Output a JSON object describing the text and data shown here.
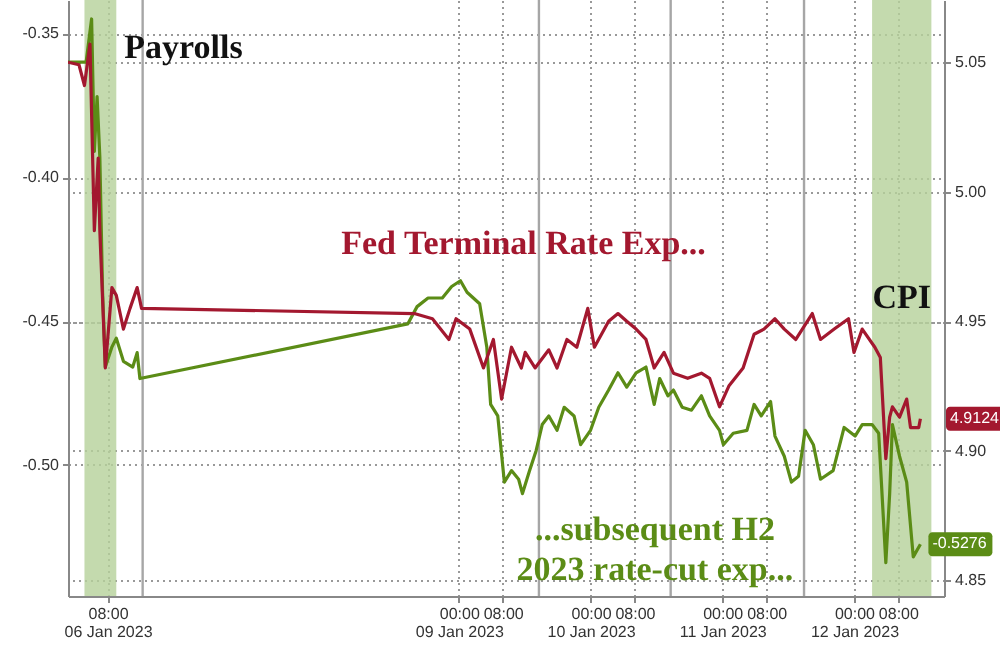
{
  "chart_data": {
    "type": "line",
    "xlim": [
      "2023-01-06T00:48",
      "2023-01-12T16:24"
    ],
    "xticks": [
      {
        "value": "2023-01-06T08:00",
        "label": "08:00\n06 Jan 2023"
      },
      {
        "value": "2023-01-09T00:00",
        "label": "00:00\n09 Jan 2023"
      },
      {
        "value": "2023-01-09T08:00",
        "label": "08:00"
      },
      {
        "value": "2023-01-10T00:00",
        "label": "00:00\n10 Jan 2023"
      },
      {
        "value": "2023-01-10T08:00",
        "label": "08:00"
      },
      {
        "value": "2023-01-11T00:00",
        "label": "00:00\n11 Jan 2023"
      },
      {
        "value": "2023-01-11T08:00",
        "label": "08:00"
      },
      {
        "value": "2023-01-12T00:00",
        "label": "00:00\n12 Jan 2023"
      },
      {
        "value": "2023-01-12T08:00",
        "label": "08:00"
      }
    ],
    "ylim": [
      -0.5456,
      -0.3384
    ],
    "yticks": [
      {
        "value": -0.35,
        "label": "-0.35"
      },
      {
        "value": -0.4,
        "label": "-0.40"
      },
      {
        "value": -0.45,
        "label": "-0.45"
      },
      {
        "value": -0.5,
        "label": "-0.50"
      }
    ],
    "y2lim": [
      4.844,
      5.074
    ],
    "y2ticks": [
      {
        "value": 4.85,
        "label": "4.85"
      },
      {
        "value": 4.9,
        "label": "4.90"
      },
      {
        "value": 4.95,
        "label": "4.95"
      },
      {
        "value": 5.0,
        "label": "5.00"
      },
      {
        "value": 5.05,
        "label": "5.05"
      }
    ],
    "grid": true,
    "line_style": "solid",
    "series": [
      {
        "color": "#a3182f",
        "axis": "y2",
        "x": [
          "2023-01-06T00:48",
          "2023-01-06T02:48",
          "2023-01-06T03:48",
          "2023-01-06T04:48",
          "2023-01-06T05:36",
          "2023-01-06T06:18",
          "2023-01-06T06:36",
          "2023-01-06T07:36",
          "2023-01-06T08:48",
          "2023-01-06T09:36",
          "2023-01-06T10:54",
          "2023-01-06T12:06",
          "2023-01-06T13:24",
          "2023-01-06T14:12",
          "2023-01-08T15:54",
          "2023-01-08T19:12",
          "2023-01-08T22:12",
          "2023-01-08T23:30",
          "2023-01-09T02:00",
          "2023-01-09T04:30",
          "2023-01-09T06:18",
          "2023-01-09T07:48",
          "2023-01-09T09:36",
          "2023-01-09T11:24",
          "2023-01-09T12:06",
          "2023-01-09T13:54",
          "2023-01-09T16:24",
          "2023-01-09T17:54",
          "2023-01-09T19:42",
          "2023-01-09T21:30",
          "2023-01-09T23:30",
          "2023-01-10T00:42",
          "2023-01-10T03:18",
          "2023-01-10T05:00",
          "2023-01-10T06:36",
          "2023-01-10T08:18",
          "2023-01-10T10:06",
          "2023-01-10T11:36",
          "2023-01-10T13:24",
          "2023-01-10T15:06",
          "2023-01-10T17:42",
          "2023-01-10T20:12",
          "2023-01-10T21:42",
          "2023-01-10T23:30",
          "2023-01-11T01:12",
          "2023-01-11T03:48",
          "2023-01-11T05:48",
          "2023-01-11T07:36",
          "2023-01-11T09:36",
          "2023-01-11T11:18",
          "2023-01-11T13:24",
          "2023-01-11T16:24",
          "2023-01-11T17:54",
          "2023-01-11T20:24",
          "2023-01-11T23:00",
          "2023-01-12T00:00",
          "2023-01-12T01:30",
          "2023-01-12T03:48",
          "2023-01-12T04:48",
          "2023-01-12T05:48",
          "2023-01-12T06:30",
          "2023-01-12T07:00",
          "2023-01-12T08:18",
          "2023-01-12T09:36",
          "2023-01-12T10:18",
          "2023-01-12T11:48",
          "2023-01-12T12:06"
        ],
        "values": [
          5.05,
          5.049,
          5.041,
          5.057,
          4.985,
          5.013,
          4.985,
          4.932,
          4.963,
          4.96,
          4.947,
          4.955,
          4.963,
          4.955,
          4.953,
          4.951,
          4.943,
          4.951,
          4.947,
          4.932,
          4.943,
          4.92,
          4.94,
          4.932,
          4.938,
          4.932,
          4.939,
          4.932,
          4.943,
          4.94,
          4.955,
          4.94,
          4.95,
          4.953,
          4.95,
          4.947,
          4.943,
          4.932,
          4.938,
          4.93,
          4.928,
          4.93,
          4.928,
          4.917,
          4.925,
          4.932,
          4.945,
          4.947,
          4.951,
          4.947,
          4.943,
          4.953,
          4.943,
          4.947,
          4.951,
          4.938,
          4.947,
          4.94,
          4.936,
          4.897,
          4.913,
          4.917,
          4.913,
          4.92,
          4.909,
          4.909,
          4.9124
        ],
        "value_labels": [
          null,
          null,
          null,
          null,
          null,
          null,
          null,
          null,
          null,
          null,
          null,
          null,
          null,
          null,
          null,
          null,
          null,
          null,
          null,
          null,
          null,
          null,
          null,
          null,
          null,
          null,
          null,
          null,
          null,
          null,
          null,
          null,
          null,
          null,
          null,
          null,
          null,
          null,
          null,
          null,
          null,
          null,
          null,
          null,
          null,
          null,
          null,
          null,
          null,
          null,
          null,
          null,
          null,
          null,
          null,
          null,
          null,
          null,
          null,
          null,
          null,
          null,
          null,
          null,
          null,
          null,
          "4.9124"
        ]
      },
      {
        "color": "#5b8c16",
        "x": [
          "2023-01-06T00:48",
          "2023-01-06T04:06",
          "2023-01-06T05:06",
          "2023-01-06T05:36",
          "2023-01-06T06:06",
          "2023-01-06T06:36",
          "2023-01-06T07:06",
          "2023-01-06T07:36",
          "2023-01-06T08:48",
          "2023-01-06T09:36",
          "2023-01-06T10:54",
          "2023-01-06T12:36",
          "2023-01-06T13:24",
          "2023-01-06T13:54",
          "2023-01-08T14:42",
          "2023-01-08T16:24",
          "2023-01-08T18:24",
          "2023-01-08T21:00",
          "2023-01-08T22:42",
          "2023-01-09T00:18",
          "2023-01-09T01:30",
          "2023-01-09T03:48",
          "2023-01-09T05:06",
          "2023-01-09T05:48",
          "2023-01-09T07:06",
          "2023-01-09T08:18",
          "2023-01-09T09:36",
          "2023-01-09T10:54",
          "2023-01-09T11:36",
          "2023-01-09T12:54",
          "2023-01-09T14:06",
          "2023-01-09T15:12",
          "2023-01-09T16:24",
          "2023-01-09T17:54",
          "2023-01-09T19:12",
          "2023-01-09T21:00",
          "2023-01-09T22:12",
          "2023-01-10T00:00",
          "2023-01-10T01:30",
          "2023-01-10T03:18",
          "2023-01-10T05:00",
          "2023-01-10T06:36",
          "2023-01-10T08:18",
          "2023-01-10T10:06",
          "2023-01-10T11:36",
          "2023-01-10T12:36",
          "2023-01-10T14:06",
          "2023-01-10T15:06",
          "2023-01-10T16:42",
          "2023-01-10T18:24",
          "2023-01-10T20:12",
          "2023-01-10T21:42",
          "2023-01-10T23:30",
          "2023-01-11T00:12",
          "2023-01-11T02:00",
          "2023-01-11T04:30",
          "2023-01-11T05:48",
          "2023-01-11T07:06",
          "2023-01-11T08:48",
          "2023-01-11T09:36",
          "2023-01-11T11:18",
          "2023-01-11T12:36",
          "2023-01-11T13:54",
          "2023-01-11T15:06",
          "2023-01-11T16:36",
          "2023-01-11T17:54",
          "2023-01-11T20:12",
          "2023-01-11T22:12",
          "2023-01-12T00:12",
          "2023-01-12T01:30",
          "2023-01-12T03:18",
          "2023-01-12T04:30",
          "2023-01-12T05:48",
          "2023-01-12T06:30",
          "2023-01-12T07:00",
          "2023-01-12T08:18",
          "2023-01-12T09:36",
          "2023-01-12T10:48",
          "2023-01-12T12:06"
        ],
        "values": [
          -0.36,
          -0.36,
          -0.345,
          -0.391,
          -0.372,
          -0.393,
          -0.44,
          -0.466,
          -0.459,
          -0.456,
          -0.464,
          -0.466,
          -0.461,
          -0.47,
          -0.451,
          -0.445,
          -0.442,
          -0.442,
          -0.438,
          -0.436,
          -0.44,
          -0.444,
          -0.459,
          -0.479,
          -0.483,
          -0.506,
          -0.502,
          -0.505,
          -0.51,
          -0.502,
          -0.495,
          -0.486,
          -0.483,
          -0.488,
          -0.48,
          -0.483,
          -0.493,
          -0.488,
          -0.48,
          -0.474,
          -0.468,
          -0.473,
          -0.468,
          -0.466,
          -0.479,
          -0.47,
          -0.476,
          -0.474,
          -0.48,
          -0.481,
          -0.476,
          -0.483,
          -0.488,
          -0.493,
          -0.489,
          -0.488,
          -0.479,
          -0.483,
          -0.478,
          -0.49,
          -0.497,
          -0.506,
          -0.504,
          -0.488,
          -0.493,
          -0.505,
          -0.502,
          -0.487,
          -0.49,
          -0.486,
          -0.486,
          -0.489,
          -0.534,
          -0.51,
          -0.486,
          -0.497,
          -0.506,
          -0.532,
          -0.5276
        ],
        "value_labels": [
          null,
          null,
          null,
          null,
          null,
          null,
          null,
          null,
          null,
          null,
          null,
          null,
          null,
          null,
          null,
          null,
          null,
          null,
          null,
          null,
          null,
          null,
          null,
          null,
          null,
          null,
          null,
          null,
          null,
          null,
          null,
          null,
          null,
          null,
          null,
          null,
          null,
          null,
          null,
          null,
          null,
          null,
          null,
          null,
          null,
          null,
          null,
          null,
          null,
          null,
          null,
          null,
          null,
          null,
          null,
          null,
          null,
          null,
          null,
          null,
          null,
          null,
          null,
          null,
          null,
          null,
          null,
          null,
          null,
          null,
          null,
          null,
          null,
          null,
          null,
          null,
          null,
          null,
          "-0.5276"
        ]
      }
    ],
    "bands": [
      {
        "axis": "x",
        "from": "2023-01-06T03:48",
        "to": "2023-01-06T09:36",
        "label": "Payrolls",
        "color": "#b5d19a"
      },
      {
        "axis": "x",
        "from": "2023-01-12T03:18",
        "to": "2023-01-12T14:06",
        "label": "CPI",
        "color": "#b5d19a"
      }
    ],
    "ref_lines": [
      {
        "axis": "x",
        "value": "2023-01-06T14:24",
        "color": "#a6a6a6"
      },
      {
        "axis": "x",
        "value": "2023-01-09T14:36",
        "color": "#a6a6a6"
      },
      {
        "axis": "x",
        "value": "2023-01-10T14:36",
        "color": "#a6a6a6"
      },
      {
        "axis": "x",
        "value": "2023-01-11T14:54",
        "color": "#a6a6a6"
      }
    ],
    "annotations": [
      "Fed Terminal Rate Exp...",
      "...subsequent H2\n2023 rate-cut exp..."
    ]
  }
}
